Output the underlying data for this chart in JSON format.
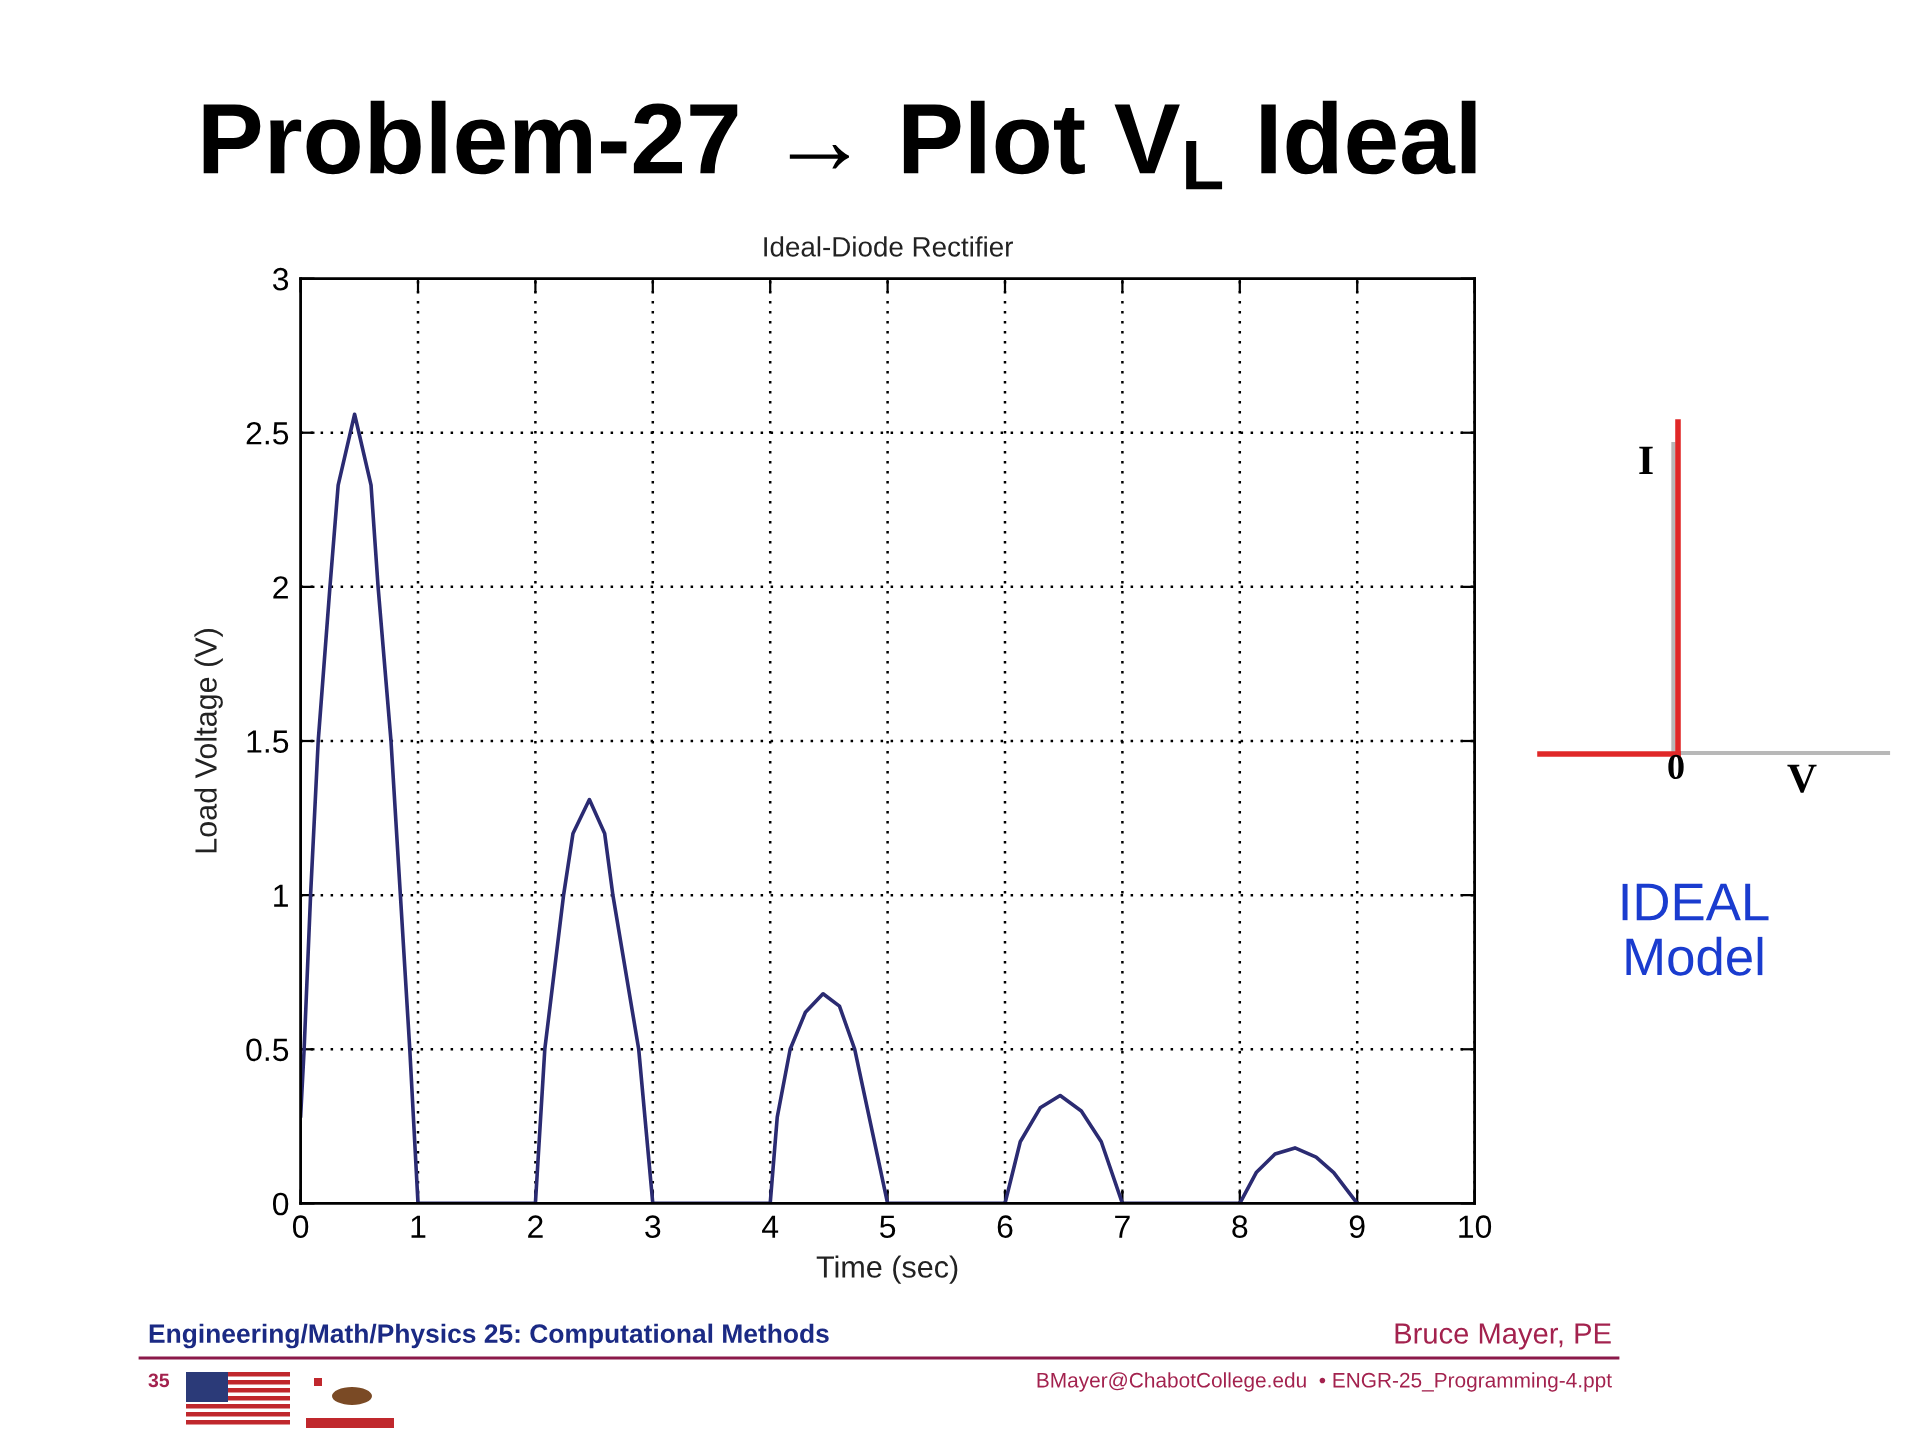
{
  "chart_data": {
    "type": "line",
    "title": "Problem-27 → Plot V$_{L}$ Ideal",
    "subtitle": "Ideal-Diode Rectifier",
    "xlabel": "Time (sec)",
    "ylabel": "Load Voltage (V)",
    "x": [
      0,
      0.03,
      0.085,
      0.15,
      0.25,
      0.32,
      0.46,
      0.6,
      0.66,
      0.77,
      0.85,
      0.93,
      1.0,
      2.0,
      2.08,
      2.24,
      2.32,
      2.46,
      2.59,
      2.66,
      2.88,
      3.0,
      4.0,
      4.06,
      4.17,
      4.3,
      4.45,
      4.59,
      4.72,
      5.0,
      6.0,
      6.13,
      6.3,
      6.47,
      6.65,
      6.82,
      7.0,
      8.0,
      8.14,
      8.3,
      8.47,
      8.65,
      8.8,
      9.0
    ],
    "series": [
      {
        "color": "#2b2b72",
        "values": [
          0.28,
          0.5,
          1.0,
          1.5,
          2.0,
          2.33,
          2.56,
          2.33,
          2.0,
          1.5,
          1.0,
          0.5,
          0,
          0,
          0.5,
          1.0,
          1.2,
          1.31,
          1.2,
          1.0,
          0.5,
          0,
          0,
          0.28,
          0.5,
          0.62,
          0.68,
          0.64,
          0.5,
          0,
          0,
          0.2,
          0.31,
          0.35,
          0.3,
          0.2,
          0,
          0,
          0.1,
          0.16,
          0.18,
          0.15,
          0.1,
          0
        ]
      }
    ],
    "xlim": [
      0,
      10
    ],
    "xticks": [
      0,
      1,
      2,
      3,
      4,
      5,
      6,
      7,
      8,
      9,
      10
    ],
    "ylim": [
      0,
      3
    ],
    "yticks": [
      0,
      0.5,
      1,
      1.5,
      2,
      2.5,
      3
    ],
    "grid": true,
    "annotations": [
      "I",
      "0",
      "V",
      "IDEAL\nModel",
      "Engineering/Math/Physics 25: Computational Methods",
      "Bruce Mayer, PE",
      "35",
      "BMayer@ChabotCollege.edu  • ENGR-25_Programming-4.ppt"
    ]
  }
}
